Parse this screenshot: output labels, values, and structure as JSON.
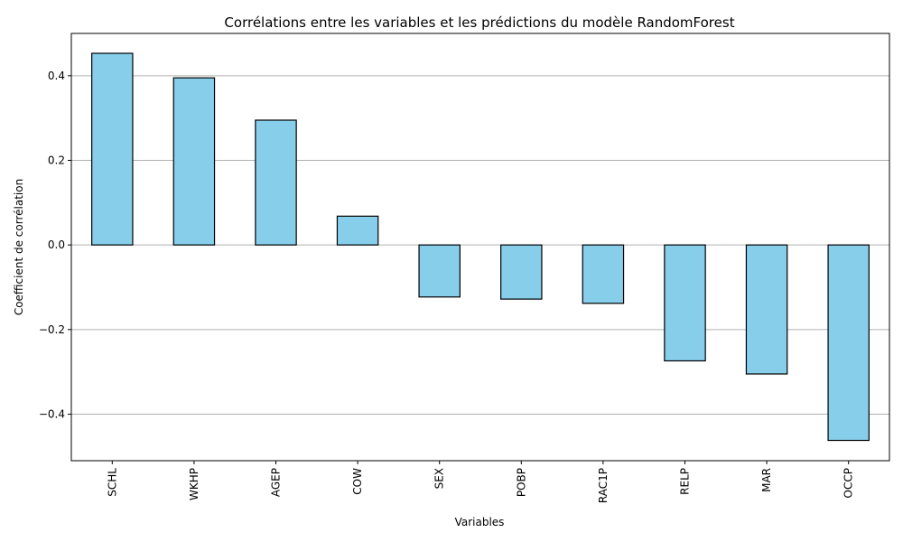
{
  "chart_data": {
    "type": "bar",
    "title": "Corrélations entre les variables et les prédictions du modèle RandomForest",
    "xlabel": "Variables",
    "ylabel": "Coefficient de corrélation",
    "categories": [
      "SCHL",
      "WKHP",
      "AGEP",
      "COW",
      "SEX",
      "POBP",
      "RAC1P",
      "RELP",
      "MAR",
      "OCCP"
    ],
    "values": [
      0.453,
      0.395,
      0.295,
      0.068,
      -0.123,
      -0.128,
      -0.138,
      -0.274,
      -0.305,
      -0.462
    ],
    "ylim": [
      -0.51,
      0.5
    ],
    "yticks": [
      -0.4,
      -0.2,
      0.0,
      0.2,
      0.4
    ],
    "ytick_labels": [
      "−0.4",
      "−0.2",
      "0.0",
      "0.2",
      "0.4"
    ],
    "grid": "y",
    "bar_color": "#87ceeb",
    "bar_edge_color": "#000000",
    "grid_color": "#b0b0b0"
  }
}
